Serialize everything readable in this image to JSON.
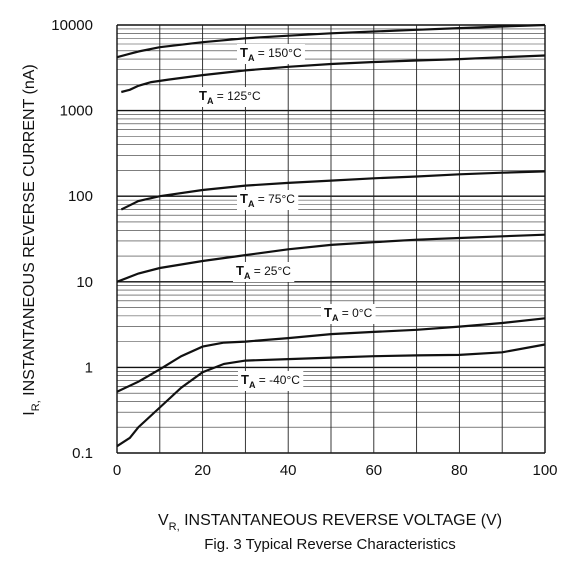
{
  "chart_data": {
    "type": "line",
    "xlabel_main": "V",
    "xlabel_sub": "R,",
    "xlabel_rest": " INSTANTANEOUS REVERSE VOLTAGE (V)",
    "ylabel_main": "I",
    "ylabel_sub": "R,",
    "ylabel_rest": " INSTANTANEOUS REVERSE CURRENT (nA)",
    "caption": "Fig. 3  Typical Reverse Characteristics",
    "xlim": [
      0,
      100
    ],
    "ylim": [
      0.1,
      10000
    ],
    "y_scale": "log",
    "grid": true,
    "x_ticks": [
      "0",
      "20",
      "40",
      "60",
      "80",
      "100"
    ],
    "y_ticks": [
      "0.1",
      "1",
      "10",
      "100",
      "1000",
      "10000"
    ],
    "series": [
      {
        "name_main": "T",
        "name_sub": "A",
        "name_rest": " = 150°C",
        "x": [
          0,
          5,
          10,
          20,
          30,
          40,
          50,
          60,
          70,
          80,
          90,
          100
        ],
        "y": [
          4200,
          4900,
          5500,
          6300,
          7000,
          7500,
          8000,
          8400,
          8800,
          9200,
          9600,
          10000
        ]
      },
      {
        "name_main": "T",
        "name_sub": "A",
        "name_rest": " = 125°C",
        "x": [
          1,
          3,
          5,
          8,
          12,
          20,
          30,
          40,
          50,
          60,
          70,
          80,
          90,
          100
        ],
        "y": [
          1650,
          1750,
          1950,
          2150,
          2300,
          2600,
          2950,
          3250,
          3500,
          3700,
          3850,
          4000,
          4200,
          4400
        ]
      },
      {
        "name_main": "T",
        "name_sub": "A",
        "name_rest": " = 75°C",
        "x": [
          1,
          5,
          10,
          20,
          30,
          40,
          50,
          60,
          70,
          80,
          90,
          100
        ],
        "y": [
          70,
          88,
          100,
          118,
          133,
          143,
          152,
          162,
          170,
          180,
          188,
          195
        ]
      },
      {
        "name_main": "T",
        "name_sub": "A",
        "name_rest": " = 25°C",
        "x": [
          0,
          5,
          10,
          20,
          30,
          40,
          50,
          60,
          70,
          80,
          90,
          100
        ],
        "y": [
          10,
          12.5,
          14.5,
          17.5,
          20.5,
          24,
          27,
          29,
          31,
          32.5,
          34,
          35.5
        ]
      },
      {
        "name_main": "T",
        "name_sub": "A",
        "name_rest": " = 0°C",
        "x": [
          0,
          5,
          10,
          15,
          20,
          25,
          30,
          40,
          50,
          60,
          70,
          80,
          90,
          100
        ],
        "y": [
          0.52,
          0.68,
          0.95,
          1.35,
          1.75,
          1.95,
          2.0,
          2.2,
          2.45,
          2.6,
          2.75,
          3.0,
          3.3,
          3.75
        ]
      },
      {
        "name_main": "T",
        "name_sub": "A",
        "name_rest": " = -40°C",
        "x": [
          0,
          3,
          5,
          10,
          15,
          20,
          25,
          30,
          40,
          50,
          60,
          70,
          80,
          90,
          100
        ],
        "y": [
          0.12,
          0.15,
          0.2,
          0.34,
          0.58,
          0.88,
          1.1,
          1.2,
          1.25,
          1.3,
          1.35,
          1.38,
          1.4,
          1.5,
          1.85
        ]
      }
    ]
  }
}
